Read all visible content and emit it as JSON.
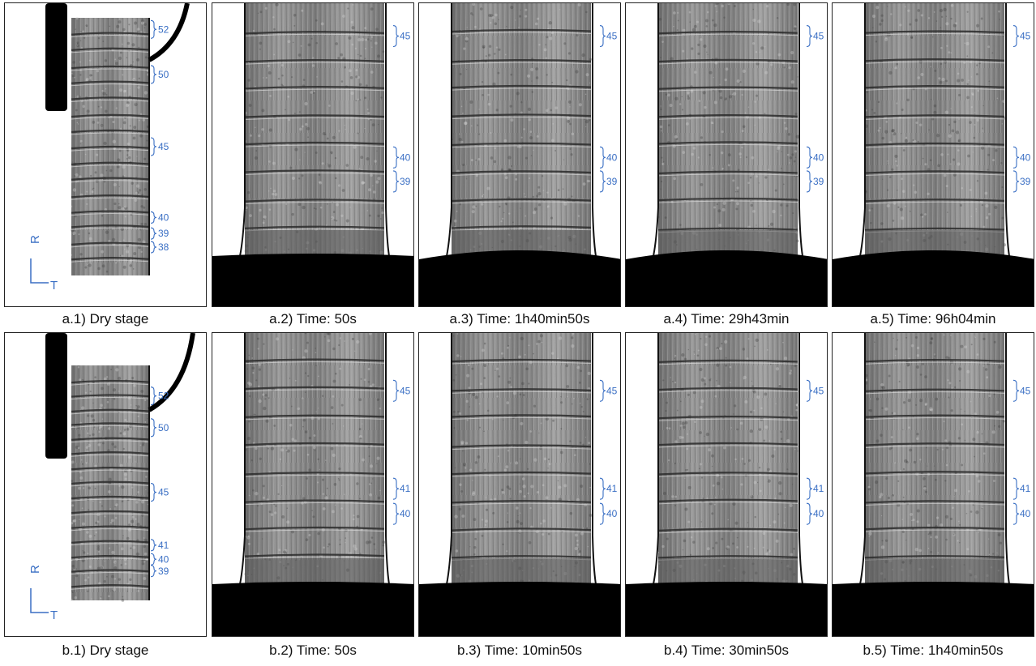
{
  "rows": [
    {
      "id": "a",
      "dry": {
        "caption": "a.1) Dry stage",
        "labels": [
          {
            "text": "52",
            "y": 0.045
          },
          {
            "text": "50",
            "y": 0.22
          },
          {
            "text": "45",
            "y": 0.5
          },
          {
            "text": "40",
            "y": 0.775
          },
          {
            "text": "39",
            "y": 0.837
          },
          {
            "text": "38",
            "y": 0.89
          }
        ]
      },
      "timepoints": [
        {
          "caption": "a.2) Time: 50s",
          "base": "flat"
        },
        {
          "caption": "a.3) Time: 1h40min50s",
          "base": "curved"
        },
        {
          "caption": "a.4) Time: 29h43min",
          "base": "curved"
        },
        {
          "caption": "a.5) Time: 96h04min",
          "base": "curved"
        }
      ],
      "wet_labels": [
        {
          "text": "45",
          "y": 0.13
        },
        {
          "text": "40",
          "y": 0.61
        },
        {
          "text": "39",
          "y": 0.705
        }
      ]
    },
    {
      "id": "b",
      "dry": {
        "caption": "b.1) Dry stage",
        "labels": [
          {
            "text": "52",
            "y": 0.13
          },
          {
            "text": "50",
            "y": 0.265
          },
          {
            "text": "45",
            "y": 0.54
          },
          {
            "text": "41",
            "y": 0.765
          },
          {
            "text": "40",
            "y": 0.825
          },
          {
            "text": "39",
            "y": 0.875
          }
        ]
      },
      "timepoints": [
        {
          "caption": "b.2) Time: 50s",
          "base": "flat"
        },
        {
          "caption": "b.3) Time: 10min50s",
          "base": "flat"
        },
        {
          "caption": "b.4) Time: 30min50s",
          "base": "flat"
        },
        {
          "caption": "b.5) Time: 1h40min50s",
          "base": "flat"
        }
      ],
      "wet_labels": [
        {
          "text": "45",
          "y": 0.23
        },
        {
          "text": "41",
          "y": 0.62
        },
        {
          "text": "40",
          "y": 0.72
        }
      ]
    }
  ],
  "axes": {
    "radial": "R",
    "tangential": "T"
  },
  "colors": {
    "annotation": "#3a6fc4",
    "holder": "#000000",
    "frame": "#222222"
  }
}
